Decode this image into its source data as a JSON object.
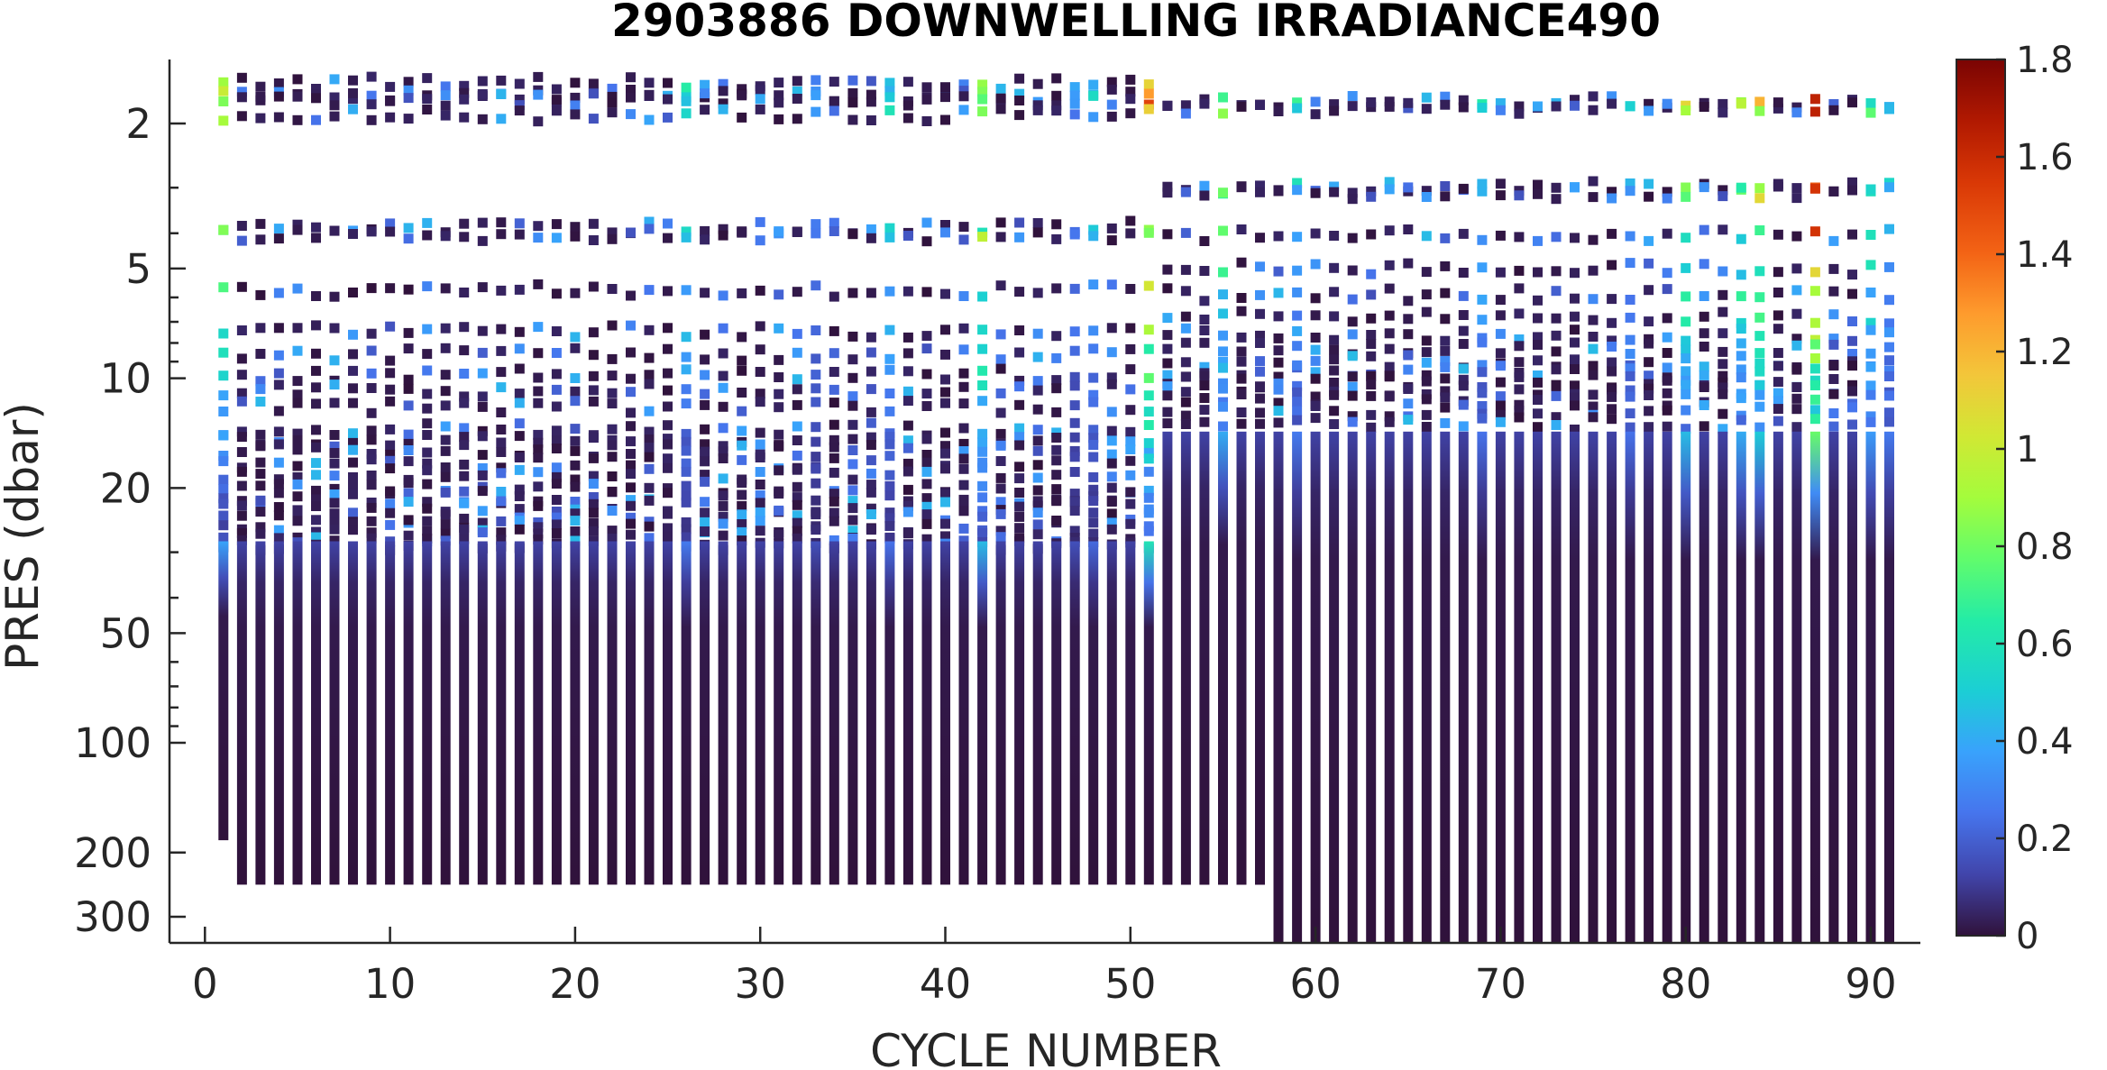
{
  "chart_data": {
    "type": "heatmap",
    "title": "2903886  DOWNWELLING IRRADIANCE490",
    "xlabel": "CYCLE NUMBER",
    "ylabel": "PRES (dbar)",
    "xlim": [
      -2,
      93
    ],
    "ylim": [
      1.25,
      360
    ],
    "y_scale": "log",
    "y_reversed": true,
    "grid": false,
    "x_ticks": [
      0,
      10,
      20,
      30,
      40,
      50,
      60,
      70,
      80,
      90
    ],
    "x_tick_labels": [
      "0",
      "10",
      "20",
      "30",
      "40",
      "50",
      "60",
      "70",
      "80",
      "90"
    ],
    "y_ticks": [
      2,
      5,
      10,
      20,
      50,
      100,
      200,
      300
    ],
    "y_tick_labels": [
      "2",
      "5",
      "10",
      "20",
      "50",
      "100",
      "200",
      "300"
    ],
    "colorbar": {
      "colormap": "turbo",
      "range": [
        0,
        1.8
      ],
      "ticks": [
        0,
        0.2,
        0.4,
        0.6,
        0.8,
        1,
        1.2,
        1.4,
        1.6,
        1.8
      ],
      "tick_labels": [
        "0",
        "0.2",
        "0.4",
        "0.6",
        "0.8",
        "1",
        "1.2",
        "1.4",
        "1.6",
        "1.8"
      ]
    },
    "cycles": {
      "first": 1,
      "last": 91
    },
    "profile_bottom_pressure": [
      {
        "cycles": [
          1,
          1
        ],
        "pres": 185
      },
      {
        "cycles": [
          2,
          57
        ],
        "pres": 245
      },
      {
        "cycles": [
          58,
          91
        ],
        "pres": 360
      }
    ],
    "sampling_change_cycle": 52,
    "bright_cycles": {
      "1": 0.85,
      "26": 0.6,
      "33": 0.35,
      "37": 0.55,
      "42": 1.0,
      "47": 0.35,
      "48": 0.5,
      "51": 1.35,
      "55": 0.9,
      "59": 0.6,
      "69": 0.55,
      "77": 0.55,
      "80": 1.0,
      "83": 0.9,
      "84": 1.1,
      "87": 1.75,
      "90": 0.8,
      "91": 0.6
    }
  }
}
